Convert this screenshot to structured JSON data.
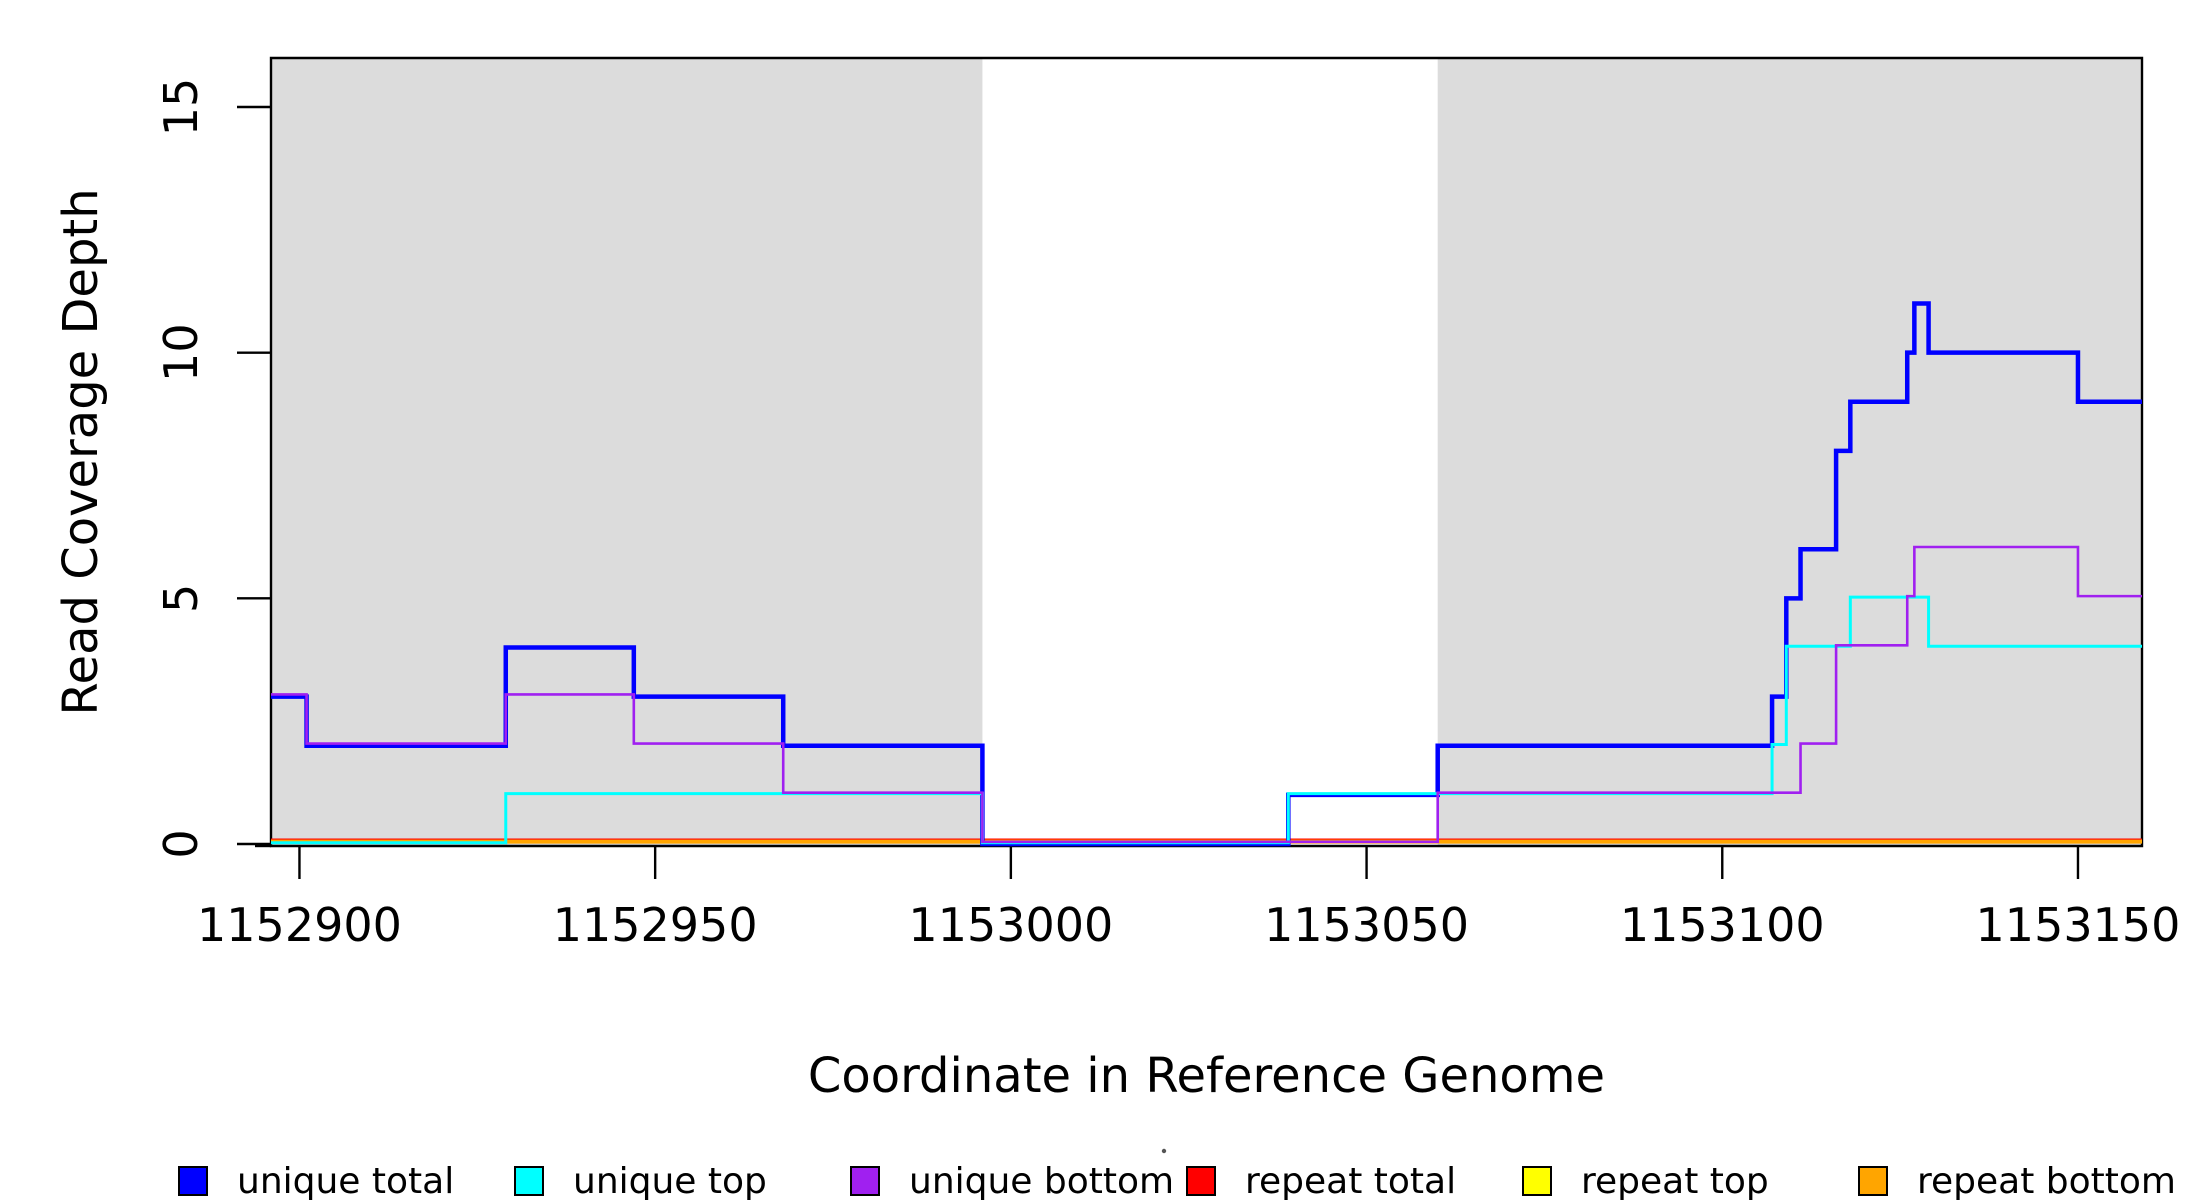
{
  "chart_data": {
    "type": "line",
    "subtype": "step-post",
    "title": "",
    "xlabel": "Coordinate in Reference Genome",
    "ylabel": "Read Coverage Depth",
    "xlim": [
      1152896,
      1153159
    ],
    "ylim": [
      0,
      16
    ],
    "grid": false,
    "x_tick_values": [
      1152900,
      1152950,
      1153000,
      1153050,
      1153100,
      1153150
    ],
    "x_tick_labels": [
      "1152900",
      "1152950",
      "1153000",
      "1153050",
      "1153100",
      "1153150"
    ],
    "y_tick_values": [
      0,
      5,
      10,
      15
    ],
    "y_tick_labels": [
      "0",
      "5",
      "10",
      "15"
    ],
    "background_regions": [
      {
        "x0": 1152896,
        "x1": 1152996,
        "color": "#DCDCDC"
      },
      {
        "x0": 1153060,
        "x1": 1153159,
        "color": "#DCDCDC"
      }
    ],
    "series": [
      {
        "name": "repeat top",
        "color": "#FFFF00",
        "line_width": 2.6,
        "steps": [
          [
            1152896,
            0
          ]
        ]
      },
      {
        "name": "repeat total",
        "color": "#FF0000",
        "line_width": 2.6,
        "steps": [
          [
            1152896,
            0
          ]
        ]
      },
      {
        "name": "repeat bottom",
        "color": "#FFA500",
        "line_width": 4,
        "steps": [
          [
            1152896,
            0
          ]
        ]
      },
      {
        "name": "unique total",
        "color": "#0000FF",
        "line_width": 4.5,
        "steps": [
          [
            1152896,
            3
          ],
          [
            1152901,
            2
          ],
          [
            1152929,
            4
          ],
          [
            1152947,
            3
          ],
          [
            1152968,
            2
          ],
          [
            1152996,
            0
          ],
          [
            1153039,
            1
          ],
          [
            1153060,
            2
          ],
          [
            1153107,
            3
          ],
          [
            1153109,
            5
          ],
          [
            1153111,
            6
          ],
          [
            1153116,
            8
          ],
          [
            1153118,
            9
          ],
          [
            1153126,
            10
          ],
          [
            1153127,
            11
          ],
          [
            1153129,
            10
          ],
          [
            1153150,
            9
          ]
        ]
      },
      {
        "name": "unique top",
        "color": "#00FFFF",
        "line_width": 3,
        "steps": [
          [
            1152896,
            0
          ],
          [
            1152929,
            1
          ],
          [
            1152996,
            0
          ],
          [
            1153039,
            1
          ],
          [
            1153107,
            2
          ],
          [
            1153109,
            4
          ],
          [
            1153118,
            5
          ],
          [
            1153129,
            4
          ]
        ]
      },
      {
        "name": "unique bottom",
        "color": "#A020F0",
        "line_width": 2.6,
        "steps": [
          [
            1152896,
            3
          ],
          [
            1152901,
            2
          ],
          [
            1152929,
            3
          ],
          [
            1152947,
            2
          ],
          [
            1152968,
            1
          ],
          [
            1152996,
            0
          ],
          [
            1153060,
            1
          ],
          [
            1153111,
            2
          ],
          [
            1153116,
            4
          ],
          [
            1153126,
            5
          ],
          [
            1153127,
            6
          ],
          [
            1153150,
            5
          ]
        ]
      }
    ],
    "legend": {
      "position": "bottom",
      "items": [
        {
          "label": "unique total",
          "color": "#0000FF"
        },
        {
          "label": "unique top",
          "color": "#00FFFF"
        },
        {
          "label": "unique bottom",
          "color": "#A020F0"
        },
        {
          "label": "repeat total",
          "color": "#FF0000"
        },
        {
          "label": "repeat top",
          "color": "#FFFF00"
        },
        {
          "label": "repeat bottom",
          "color": "#FFA500"
        }
      ]
    },
    "axis_color": "#000000",
    "plot_background": "#FFFFFF"
  }
}
